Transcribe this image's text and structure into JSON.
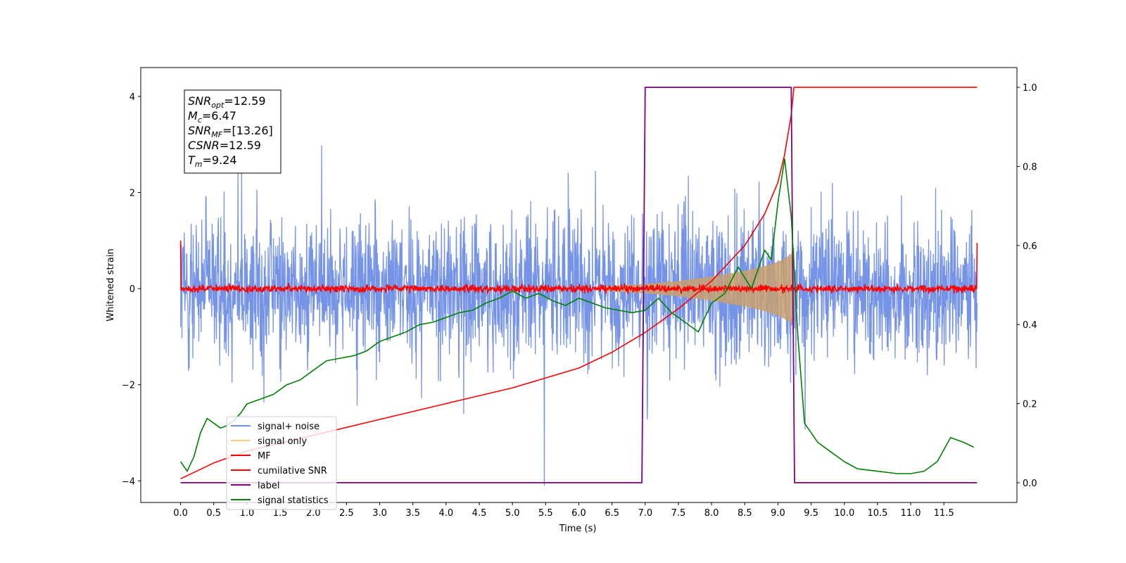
{
  "chart_data": {
    "type": "line",
    "xlabel": "Time (s)",
    "ylabel": "Whitened strain",
    "xlim": [
      -0.6,
      12.6
    ],
    "ylim": [
      -4.45,
      4.6
    ],
    "ylim_right": [
      -0.05,
      1.05
    ],
    "x_ticks": [
      0,
      0.5,
      1,
      1.5,
      2,
      2.5,
      3,
      3.5,
      4,
      4.5,
      5,
      5.5,
      6,
      6.5,
      7,
      7.5,
      8,
      8.5,
      9,
      9.5,
      10,
      10.5,
      11,
      11.5
    ],
    "x_tick_labels": [
      "0.0",
      "0.5",
      "1.0",
      "1.5",
      "2.0",
      "2.5",
      "3.0",
      "3.5",
      "4.0",
      "4.5",
      "5.0",
      "5.5",
      "6.0",
      "6.5",
      "7.0",
      "7.5",
      "8.0",
      "8.5",
      "9.0",
      "9.5",
      "10.0",
      "10.5",
      "11.0",
      "11.5"
    ],
    "y_ticks": [
      -4,
      -2,
      0,
      2,
      4
    ],
    "y_tick_labels": [
      "−4",
      "−2",
      "0",
      "2",
      "4"
    ],
    "y_right_ticks": [
      0,
      0.2,
      0.4,
      0.6,
      0.8,
      1.0
    ],
    "y_right_tick_labels": [
      "0.0",
      "0.2",
      "0.4",
      "0.6",
      "0.8",
      "1.0"
    ],
    "info_box": {
      "snr_opt_main": "SNR",
      "snr_opt_sub": "opt",
      "snr_opt_value": "=12.59",
      "mc_main": "M",
      "mc_sub": "c",
      "mc_value": "=6.47",
      "snr_mf_main": "SNR",
      "snr_mf_sub": "MF",
      "snr_mf_value": "=[13.26]",
      "csnr_main": "CSNR",
      "csnr_value": "=12.59",
      "tm_main": "T",
      "tm_sub": "m",
      "tm_value": "=9.24"
    },
    "legend": {
      "placement": "lower-left",
      "entries": [
        {
          "label": "signal+ noise",
          "color": "#6f8ee6"
        },
        {
          "label": "signal only",
          "color": "#ffd27f"
        },
        {
          "label": "MF",
          "color": "#ff0000"
        },
        {
          "label": "cumilative SNR",
          "color": "#ff0000"
        },
        {
          "label": "label",
          "color": "#800080"
        },
        {
          "label": "signal statistics",
          "color": "#008000"
        }
      ]
    },
    "series": [
      {
        "name": "signal+ noise",
        "axis": "left",
        "color": "#6f8ee6",
        "x_range": [
          0,
          12
        ],
        "envelope_typical": 2.2,
        "peak_max": 4.1,
        "peak_min": -4.1
      },
      {
        "name": "signal only",
        "axis": "left",
        "color": "#c8a06e",
        "x": [
          6.4,
          7.0,
          7.5,
          8.0,
          8.5,
          8.8,
          9.0,
          9.1,
          9.2,
          9.24
        ],
        "amplitude": [
          0.04,
          0.09,
          0.15,
          0.24,
          0.36,
          0.46,
          0.55,
          0.62,
          0.7,
          0.85
        ]
      },
      {
        "name": "MF",
        "axis": "left",
        "color": "#ff0000",
        "x_range": [
          0,
          12
        ],
        "noise_level": 0.12,
        "start_value": 1.0,
        "end_value": 0.95
      },
      {
        "name": "cumilative SNR",
        "axis": "right",
        "color": "#ff0000",
        "x": [
          0,
          0.5,
          1,
          1.5,
          2,
          3,
          4,
          5,
          6,
          6.5,
          7,
          7.5,
          8,
          8.5,
          8.8,
          9,
          9.1,
          9.2,
          9.24,
          12
        ],
        "y": [
          0.01,
          0.05,
          0.08,
          0.1,
          0.12,
          0.16,
          0.2,
          0.24,
          0.29,
          0.33,
          0.38,
          0.44,
          0.51,
          0.6,
          0.68,
          0.76,
          0.83,
          0.93,
          1.0,
          1.0
        ]
      },
      {
        "name": "label",
        "axis": "right",
        "color": "#800080",
        "x": [
          0,
          6.95,
          7.0,
          9.2,
          9.25,
          12
        ],
        "y": [
          0,
          0,
          1,
          1,
          0,
          0
        ]
      },
      {
        "name": "signal statistics",
        "axis": "left",
        "color": "#008000",
        "x": [
          0,
          0.1,
          0.2,
          0.3,
          0.4,
          0.5,
          0.6,
          0.7,
          0.8,
          0.9,
          1.0,
          1.2,
          1.4,
          1.6,
          1.8,
          2.0,
          2.2,
          2.4,
          2.6,
          2.8,
          3.0,
          3.2,
          3.4,
          3.6,
          3.8,
          4.0,
          4.2,
          4.4,
          4.6,
          4.8,
          5.0,
          5.2,
          5.4,
          5.6,
          5.8,
          6.0,
          6.2,
          6.4,
          6.6,
          6.8,
          7.0,
          7.2,
          7.4,
          7.6,
          7.8,
          8.0,
          8.2,
          8.4,
          8.6,
          8.8,
          8.9,
          9.0,
          9.1,
          9.2,
          9.3,
          9.4,
          9.6,
          9.8,
          10.0,
          10.2,
          10.5,
          10.8,
          11.0,
          11.2,
          11.4,
          11.6,
          11.8,
          11.95
        ],
        "y": [
          -3.6,
          -3.8,
          -3.5,
          -3.0,
          -2.7,
          -2.8,
          -2.9,
          -2.85,
          -2.75,
          -2.6,
          -2.4,
          -2.3,
          -2.2,
          -2.0,
          -1.9,
          -1.7,
          -1.5,
          -1.45,
          -1.4,
          -1.3,
          -1.1,
          -1.0,
          -0.9,
          -0.75,
          -0.7,
          -0.6,
          -0.5,
          -0.45,
          -0.3,
          -0.2,
          -0.05,
          -0.2,
          -0.1,
          -0.25,
          -0.35,
          -0.2,
          -0.3,
          -0.4,
          -0.45,
          -0.5,
          -0.45,
          -0.2,
          -0.5,
          -0.7,
          -0.9,
          -0.3,
          -0.1,
          0.45,
          0.0,
          0.8,
          0.6,
          1.8,
          2.7,
          1.5,
          -1.0,
          -2.8,
          -3.2,
          -3.4,
          -3.6,
          -3.75,
          -3.8,
          -3.85,
          -3.85,
          -3.8,
          -3.6,
          -3.1,
          -3.2,
          -3.3
        ]
      }
    ]
  }
}
